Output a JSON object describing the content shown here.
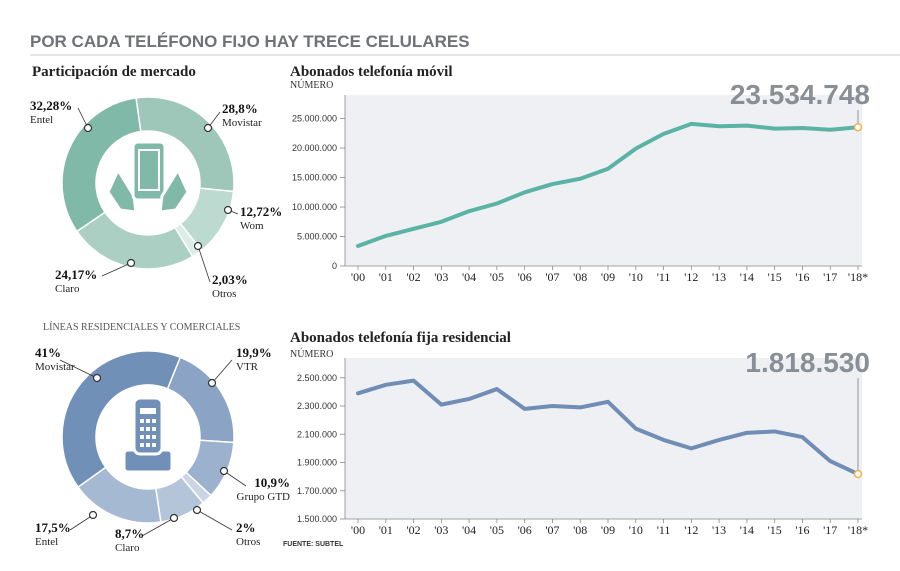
{
  "title": "POR CADA TELÉFONO FIJO HAY TRECE CELULARES",
  "source": "FUENTE: SUBTEL",
  "chart_data": [
    {
      "type": "pie",
      "title": "Participación de mercado",
      "categories": [
        "Movistar",
        "Wom",
        "Otros",
        "Claro",
        "Entel"
      ],
      "values": [
        28.8,
        12.72,
        2.03,
        24.17,
        32.28
      ],
      "value_labels": [
        "28,8%",
        "12,72%",
        "2,03%",
        "24,17%",
        "32,28%"
      ],
      "colors": [
        "#9ec7ba",
        "#bcdad0",
        "#dcece6",
        "#abd0c3",
        "#80b9a7"
      ]
    },
    {
      "type": "line",
      "title": "Abonados telefonía móvil",
      "y_label": "NÚMERO",
      "categories": [
        "'00",
        "'01",
        "'02",
        "'03",
        "'04",
        "'05",
        "'06",
        "'07",
        "'08",
        "'09",
        "'10",
        "'11",
        "'12",
        "'13",
        "'14",
        "'15",
        "'16",
        "'17",
        "'18*"
      ],
      "values": [
        3400000,
        5100000,
        6300000,
        7500000,
        9300000,
        10600000,
        12500000,
        13900000,
        14800000,
        16500000,
        19900000,
        22400000,
        24100000,
        23700000,
        23800000,
        23300000,
        23400000,
        23100000,
        23534748
      ],
      "value_labels": [
        null,
        null,
        null,
        null,
        null,
        null,
        null,
        null,
        null,
        null,
        null,
        null,
        null,
        null,
        null,
        null,
        null,
        null,
        "23.534.748"
      ],
      "color": "#5bb3a5",
      "ylim": [
        0,
        29000000
      ],
      "yticks": [
        0,
        {
          "value": 5000000,
          "label": "5.000.000"
        },
        {
          "value": 10000000,
          "label": "10.000.000"
        },
        {
          "value": 15000000,
          "label": "15.000.000"
        },
        {
          "value": 20000000,
          "label": "20.000.000"
        },
        {
          "value": 25000000,
          "label": "25.000.000"
        }
      ]
    },
    {
      "type": "pie",
      "subtitle": "LÍNEAS RESIDENCIALES Y COMERCIALES",
      "categories": [
        "VTR",
        "Grupo GTD",
        "Otros",
        "Claro",
        "Entel",
        "Movistar"
      ],
      "values": [
        19.9,
        10.9,
        2,
        8.7,
        17.5,
        41
      ],
      "value_labels": [
        "19,9%",
        "10,9%",
        "2%",
        "8,7%",
        "17,5%",
        "41%"
      ],
      "colors": [
        "#8ba4c5",
        "#9bb1cd",
        "#cad6e5",
        "#b5c5d9",
        "#a6b9d3",
        "#7090b7"
      ]
    },
    {
      "type": "line",
      "title": "Abonados telefonía fija residencial",
      "y_label": "NÚMERO",
      "categories": [
        "'00",
        "'01",
        "'02",
        "'03",
        "'04",
        "'05",
        "'06",
        "'07",
        "'08",
        "'09",
        "'10",
        "'11",
        "'12",
        "'13",
        "'14",
        "'15",
        "'16",
        "'17",
        "'18*"
      ],
      "values": [
        2390000,
        2450000,
        2480000,
        2310000,
        2350000,
        2420000,
        2280000,
        2300000,
        2290000,
        2330000,
        2140000,
        2060000,
        2000000,
        2060000,
        2110000,
        2120000,
        2080000,
        1910000,
        1818530
      ],
      "value_labels": [
        null,
        null,
        null,
        null,
        null,
        null,
        null,
        null,
        null,
        null,
        null,
        null,
        null,
        null,
        null,
        null,
        null,
        null,
        "1.818.530"
      ],
      "color": "#6f8db5",
      "ylim": [
        1500000,
        2640000
      ],
      "yticks": [
        {
          "value": 1500000,
          "label": "1.500.000"
        },
        {
          "value": 1700000,
          "label": "1.700.000"
        },
        {
          "value": 1900000,
          "label": "1.900.000"
        },
        {
          "value": 2100000,
          "label": "2.100.000"
        },
        {
          "value": 2300000,
          "label": "2.300.000"
        },
        {
          "value": 2500000,
          "label": "2.500.000"
        }
      ]
    }
  ]
}
